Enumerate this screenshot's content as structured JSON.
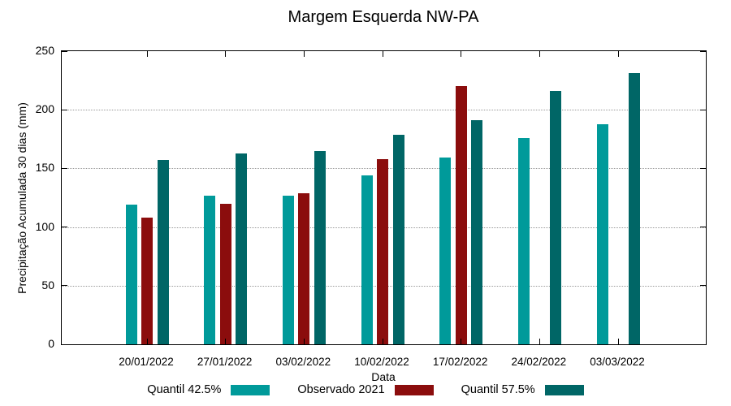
{
  "title": "Margem Esquerda NW-PA",
  "chart_data": {
    "type": "bar",
    "title": "Margem Esquerda NW-PA",
    "xlabel": "Data",
    "ylabel": "Precipitação Acumulada 30 dias (mm)",
    "ylim": [
      0,
      250
    ],
    "yticks": [
      0,
      50,
      100,
      150,
      200,
      250
    ],
    "grid": "horizontal dotted at 50,100,150,200",
    "legend_position": "bottom",
    "categories": [
      "20/01/2022",
      "27/01/2022",
      "03/02/2022",
      "10/02/2022",
      "17/02/2022",
      "24/02/2022",
      "03/03/2022"
    ],
    "series": [
      {
        "name": "Quantil 42.5%",
        "color": "#009a9a",
        "values": [
          119,
          127,
          127,
          144,
          159,
          176,
          188
        ]
      },
      {
        "name": "Observado 2021",
        "color": "#8b0d0d",
        "values": [
          108,
          120,
          129,
          158,
          220,
          null,
          null
        ]
      },
      {
        "name": "Quantil 57.5%",
        "color": "#006666",
        "values": [
          157,
          163,
          165,
          179,
          191,
          216,
          231
        ]
      }
    ],
    "colors": {
      "axis": "#000000",
      "grid": "#9a9a9a",
      "background": "#ffffff"
    }
  }
}
